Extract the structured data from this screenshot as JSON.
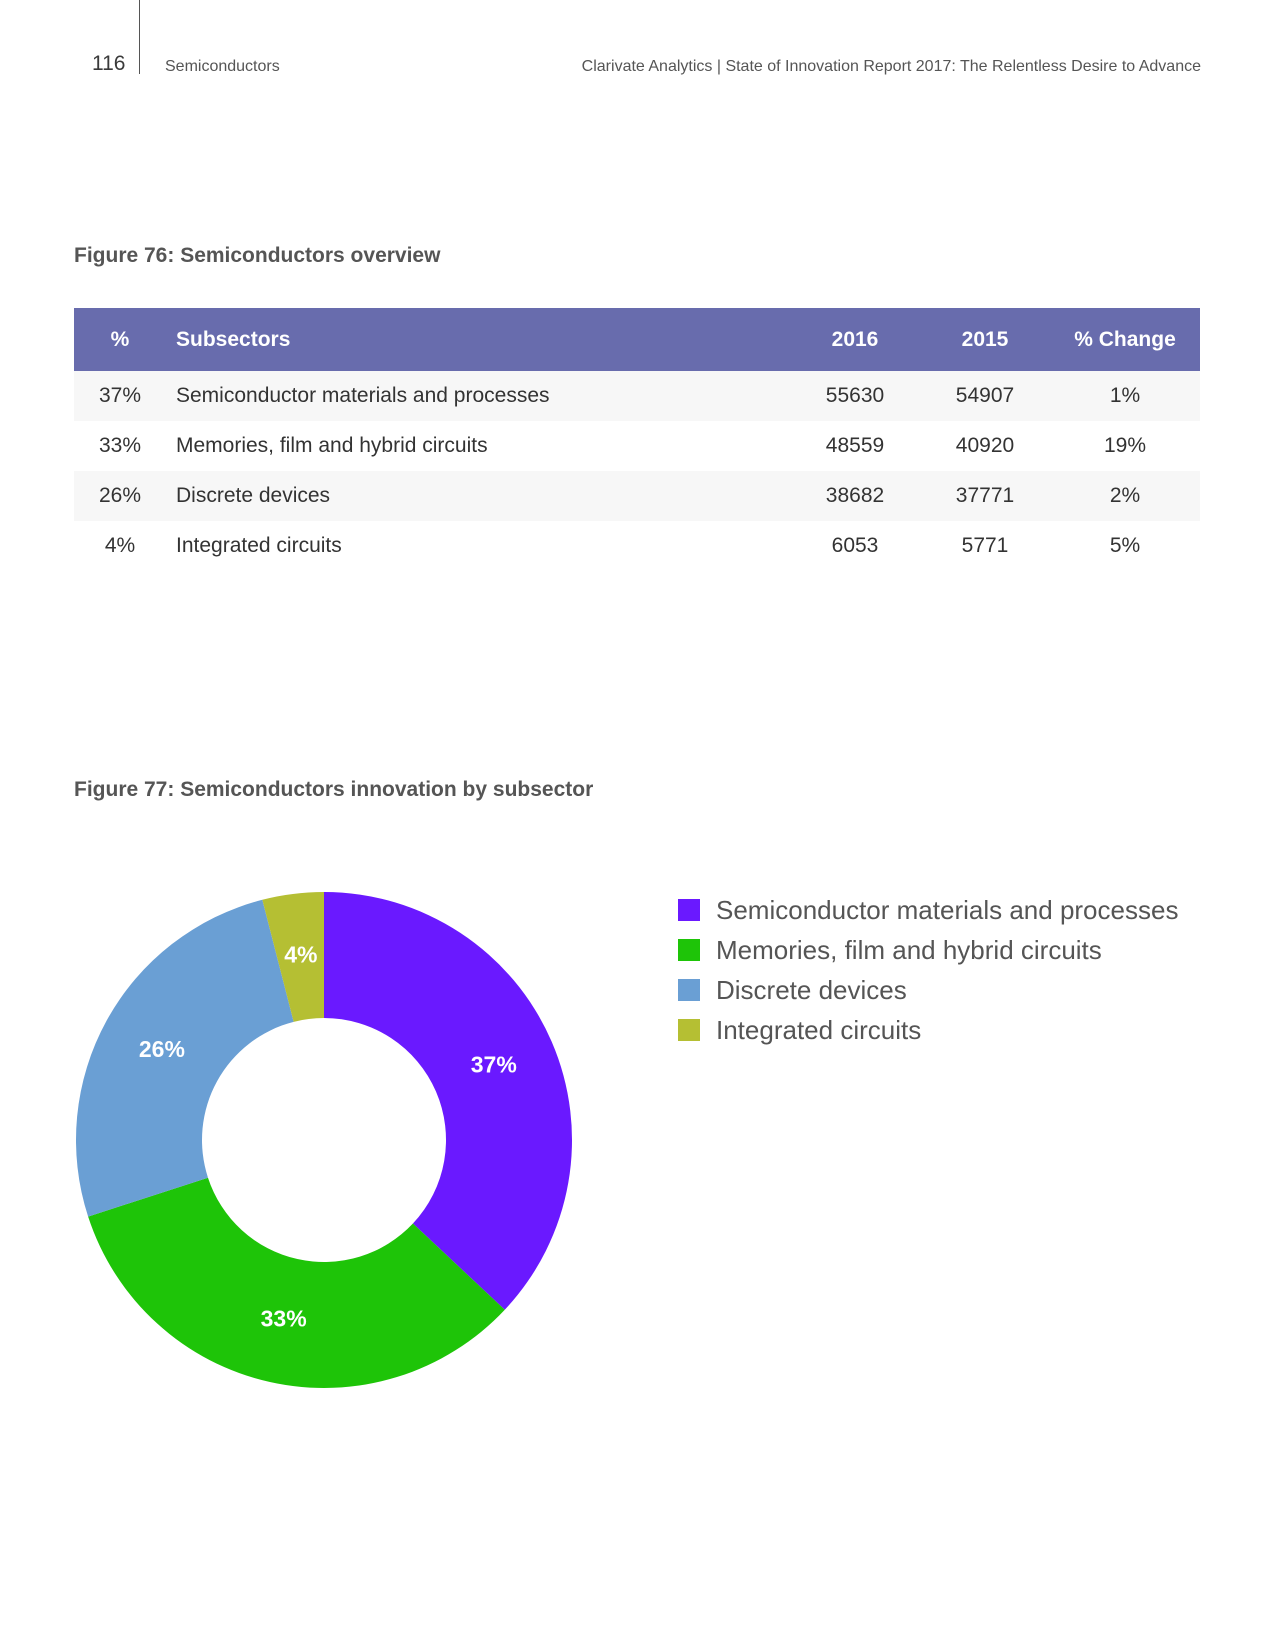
{
  "header": {
    "page_number": "116",
    "section": "Semiconductors",
    "report_title": "Clarivate Analytics | State of Innovation Report 2017: The Relentless Desire to Advance"
  },
  "figure76": {
    "title": "Figure 76: Semiconductors overview",
    "columns": [
      "%",
      "Subsectors",
      "2016",
      "2015",
      "% Change"
    ],
    "rows": [
      {
        "pct": "37%",
        "subsector": "Semiconductor materials and processes",
        "y2016": "55630",
        "y2015": "54907",
        "change": "1%"
      },
      {
        "pct": "33%",
        "subsector": "Memories, film and hybrid circuits",
        "y2016": "48559",
        "y2015": "40920",
        "change": "19%"
      },
      {
        "pct": "26%",
        "subsector": "Discrete devices",
        "y2016": "38682",
        "y2015": "37771",
        "change": "2%"
      },
      {
        "pct": "4%",
        "subsector": "Integrated circuits",
        "y2016": "6053",
        "y2015": "5771",
        "change": "5%"
      }
    ]
  },
  "figure77": {
    "title": "Figure 77: Semiconductors innovation by subsector"
  },
  "chart_data": {
    "type": "pie",
    "variant": "donut",
    "title": "Figure 77: Semiconductors innovation by subsector",
    "categories": [
      "Semiconductor materials and processes",
      "Memories, film and hybrid circuits",
      "Discrete devices",
      "Integrated circuits"
    ],
    "values": [
      37,
      33,
      26,
      4
    ],
    "labels": [
      "37%",
      "33%",
      "26%",
      "4%"
    ],
    "colors": [
      "#6a19ff",
      "#1ec408",
      "#6a9fd4",
      "#b5bf33"
    ],
    "legend_position": "right"
  }
}
